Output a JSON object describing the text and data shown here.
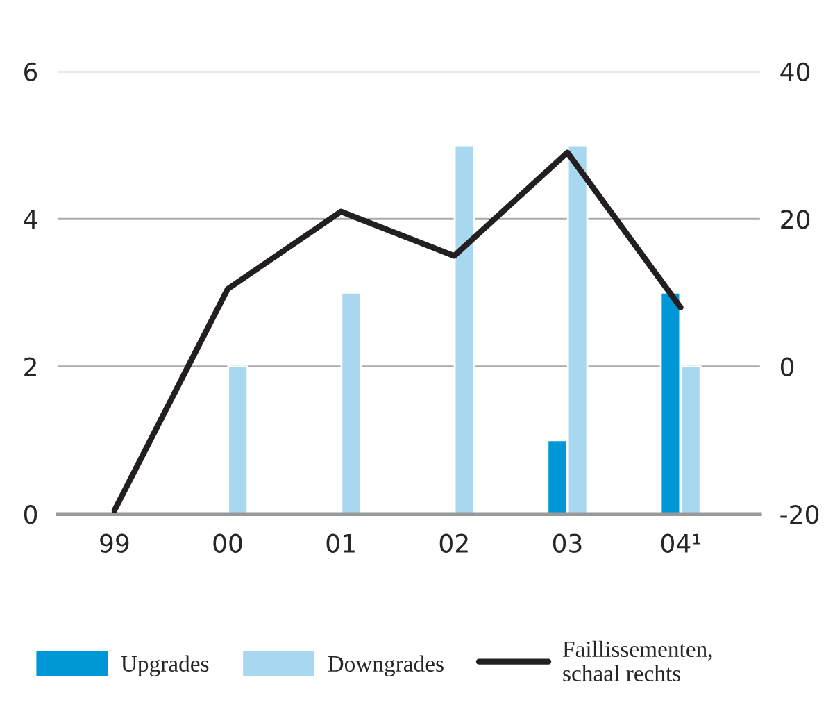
{
  "chart_data": {
    "type": "bar",
    "categories": [
      "99",
      "00",
      "01",
      "02",
      "03",
      "04¹"
    ],
    "series": [
      {
        "name": "Upgrades",
        "color": "#0097d6",
        "values": [
          null,
          null,
          null,
          null,
          1,
          3
        ]
      },
      {
        "name": "Downgrades",
        "color": "#a8d8f0",
        "values": [
          null,
          2,
          3,
          5,
          5,
          2
        ]
      },
      {
        "name": "Faillissementen, schaal rechts",
        "type": "line",
        "axis": "y2",
        "color": "#231f20",
        "values": [
          -19.5,
          10.5,
          21,
          15,
          29,
          8
        ]
      }
    ],
    "ylim": [
      0,
      6
    ],
    "yticks": [
      0,
      2,
      4,
      6
    ],
    "y2lim": [
      -20,
      40
    ],
    "y2ticks": [
      -20,
      0,
      20,
      40
    ],
    "grid": "y",
    "legend": "bottom"
  }
}
